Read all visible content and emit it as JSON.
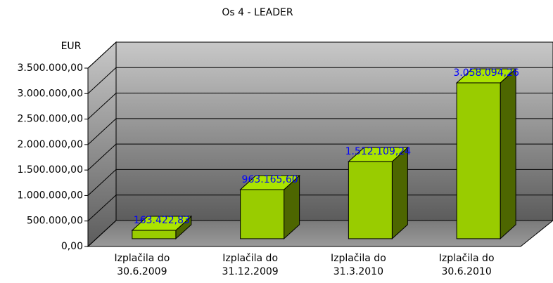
{
  "chart_data": {
    "type": "bar3d",
    "title": "Os 4 - LEADER",
    "y_label": "EUR",
    "categories": [
      "Izplačila do 30.6.2009",
      "Izplačila do 31.12.2009",
      "Izplačila do 31.3.2010",
      "Izplačila do 30.6.2010"
    ],
    "values": [
      163422.83,
      963165.6,
      1512109.24,
      3058094.26
    ],
    "value_labels": [
      "163.422,83",
      "963.165,60",
      "1.512.109,24",
      "3.058.094,26"
    ],
    "color": "#99cc00",
    "label_color": "#0000ff",
    "ylim": [
      0,
      3500000
    ],
    "yticks": [
      {
        "value": 0,
        "label": "0,00"
      },
      {
        "value": 500000,
        "label": "500.000,00"
      },
      {
        "value": 1000000,
        "label": "1.000.000,00"
      },
      {
        "value": 1500000,
        "label": "1.500.000,00"
      },
      {
        "value": 2000000,
        "label": "2.000.000,00"
      },
      {
        "value": 2500000,
        "label": "2.500.000,00"
      },
      {
        "value": 3000000,
        "label": "3.000.000,00"
      },
      {
        "value": 3500000,
        "label": "3.500.000,00"
      }
    ],
    "grid": true
  }
}
